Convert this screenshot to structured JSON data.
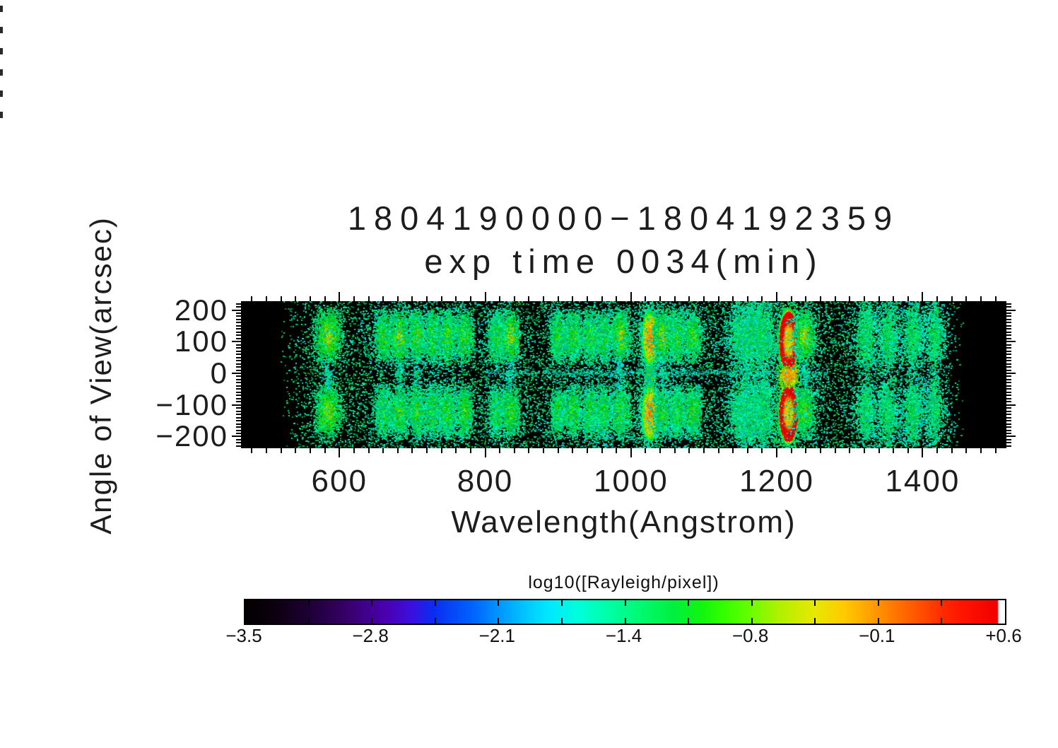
{
  "title": {
    "line1": "1804190000−1804192359",
    "line2": "exp time 0034(min)"
  },
  "chart_data": {
    "type": "heatmap",
    "title": "1804190000−1804192359",
    "subtitle": "exp time 0034(min)",
    "xlabel": "Wavelength(Angstrom)",
    "ylabel": "Angle of View(arcsec)",
    "xlim": [
      465,
      1515
    ],
    "ylim": [
      -237,
      228
    ],
    "x_ticks": [
      600,
      800,
      1000,
      1200,
      1400
    ],
    "x_tick_labels": [
      "600",
      "800",
      "1000",
      "1200",
      "1400"
    ],
    "x_minor_step": 20,
    "y_ticks": [
      200,
      100,
      0,
      -100,
      -200
    ],
    "y_tick_labels": [
      "200",
      "100",
      "0",
      "−100",
      "−200"
    ],
    "y_minor_step": 10,
    "grid": false,
    "background": "#000000",
    "signal_range_angstrom": [
      530,
      1455
    ],
    "slit_gap_arcsec": [
      -30,
      30
    ],
    "noise_floor_log10R": [
      -2.2,
      -1.3
    ],
    "center_streak": {
      "y_arcsec": 0,
      "x_range_angstrom": [
        800,
        1270
      ],
      "log10R": -1.8
    },
    "emission_lines": [
      {
        "wl": 584,
        "width": 19,
        "top": 0.95,
        "bottom": 0.85,
        "style": "green",
        "peak_log10R": -0.6
      },
      {
        "wl": 660,
        "width": 12,
        "top": 0.55,
        "bottom": 0.5,
        "style": "green",
        "peak_log10R": -0.9
      },
      {
        "wl": 682,
        "width": 13,
        "top": 0.75,
        "bottom": 0.6,
        "style": "ycore",
        "peak_log10R": -0.6
      },
      {
        "wl": 706,
        "width": 12,
        "top": 0.65,
        "bottom": 0.6,
        "style": "green",
        "peak_log10R": -0.8
      },
      {
        "wl": 728,
        "width": 11,
        "top": 0.55,
        "bottom": 0.55,
        "style": "green",
        "peak_log10R": -0.9
      },
      {
        "wl": 748,
        "width": 12,
        "top": 0.6,
        "bottom": 0.55,
        "style": "green",
        "peak_log10R": -0.9
      },
      {
        "wl": 771,
        "width": 12,
        "top": 0.6,
        "bottom": 0.6,
        "style": "green",
        "peak_log10R": -0.9
      },
      {
        "wl": 815,
        "width": 11,
        "top": 0.5,
        "bottom": 0.45,
        "style": "green",
        "peak_log10R": -1.0
      },
      {
        "wl": 834,
        "width": 13,
        "top": 0.7,
        "bottom": 0.6,
        "style": "ycore",
        "peak_log10R": -0.6
      },
      {
        "wl": 900,
        "width": 11,
        "top": 0.5,
        "bottom": 0.45,
        "style": "green",
        "peak_log10R": -1.0
      },
      {
        "wl": 920,
        "width": 12,
        "top": 0.55,
        "bottom": 0.5,
        "style": "green",
        "peak_log10R": -0.9
      },
      {
        "wl": 944,
        "width": 11,
        "top": 0.55,
        "bottom": 0.5,
        "style": "green",
        "peak_log10R": -0.9
      },
      {
        "wl": 962,
        "width": 10,
        "top": 0.5,
        "bottom": 0.45,
        "style": "green",
        "peak_log10R": -1.0
      },
      {
        "wl": 985,
        "width": 13,
        "top": 0.75,
        "bottom": 0.6,
        "style": "ycore",
        "peak_log10R": -0.6
      },
      {
        "wl": 1026,
        "width": 26,
        "top": 1.0,
        "bottom": 1.0,
        "style": "yellow",
        "peak_log10R": -0.1
      },
      {
        "wl": 1043,
        "width": 13,
        "top": 0.75,
        "bottom": 0.55,
        "style": "ycore",
        "peak_log10R": -0.6
      },
      {
        "wl": 1063,
        "width": 11,
        "top": 0.55,
        "bottom": 0.5,
        "style": "green",
        "peak_log10R": -0.9
      },
      {
        "wl": 1084,
        "width": 12,
        "top": 0.6,
        "bottom": 0.55,
        "style": "green",
        "peak_log10R": -0.9
      },
      {
        "wl": 1150,
        "width": 15,
        "top": 0.5,
        "bottom": 0.45,
        "style": "diffuse",
        "peak_log10R": -1.1
      },
      {
        "wl": 1166,
        "width": 14,
        "top": 0.55,
        "bottom": 0.5,
        "style": "diffuse",
        "peak_log10R": -1.1
      },
      {
        "wl": 1181,
        "width": 12,
        "top": 0.5,
        "bottom": 0.45,
        "style": "diffuse",
        "peak_log10R": -1.1
      },
      {
        "wl": 1216,
        "width": 28,
        "top": 1.0,
        "bottom": 1.0,
        "style": "lya",
        "peak_log10R": 0.6
      },
      {
        "wl": 1238,
        "width": 14,
        "top": 0.8,
        "bottom": 0.65,
        "style": "ycore",
        "peak_log10R": -0.5
      },
      {
        "wl": 1322,
        "width": 13,
        "top": 0.4,
        "bottom": 0.35,
        "style": "diffuse",
        "peak_log10R": -1.2
      },
      {
        "wl": 1352,
        "width": 12,
        "top": 0.4,
        "bottom": 0.35,
        "style": "diffuse",
        "peak_log10R": -1.2
      },
      {
        "wl": 1387,
        "width": 12,
        "top": 0.35,
        "bottom": 0.35,
        "style": "diffuse",
        "peak_log10R": -1.3
      },
      {
        "wl": 1416,
        "width": 10,
        "top": 0.3,
        "bottom": 0.25,
        "style": "diffuse",
        "peak_log10R": -1.3
      }
    ],
    "colorbar": {
      "label": "log10([Rayleigh/pixel])",
      "min": -3.5,
      "max": 0.6,
      "tick_labels": [
        "−3.5",
        "−2.8",
        "−2.1",
        "−1.4",
        "−0.8",
        "−0.1",
        "+0.6"
      ],
      "gradient": [
        {
          "pos": 0.0,
          "color": "#000000"
        },
        {
          "pos": 0.04,
          "color": "#0d0010"
        },
        {
          "pos": 0.09,
          "color": "#20003a"
        },
        {
          "pos": 0.14,
          "color": "#3a0070"
        },
        {
          "pos": 0.185,
          "color": "#4a00b0"
        },
        {
          "pos": 0.22,
          "color": "#3a10e0"
        },
        {
          "pos": 0.247,
          "color": "#0b2cf0"
        },
        {
          "pos": 0.3,
          "color": "#0064ff"
        },
        {
          "pos": 0.33,
          "color": "#0090ff"
        },
        {
          "pos": 0.37,
          "color": "#00c8ff"
        },
        {
          "pos": 0.4,
          "color": "#00e8ff"
        },
        {
          "pos": 0.44,
          "color": "#00ffd8"
        },
        {
          "pos": 0.47,
          "color": "#00ffb0"
        },
        {
          "pos": 0.52,
          "color": "#00fa70"
        },
        {
          "pos": 0.563,
          "color": "#00f040"
        },
        {
          "pos": 0.6,
          "color": "#10f510"
        },
        {
          "pos": 0.628,
          "color": "#30ff00"
        },
        {
          "pos": 0.66,
          "color": "#60ff00"
        },
        {
          "pos": 0.702,
          "color": "#b0f000"
        },
        {
          "pos": 0.75,
          "color": "#e8e800"
        },
        {
          "pos": 0.79,
          "color": "#ffc800"
        },
        {
          "pos": 0.823,
          "color": "#ffa000"
        },
        {
          "pos": 0.86,
          "color": "#ff7000"
        },
        {
          "pos": 0.888,
          "color": "#ff5000"
        },
        {
          "pos": 0.92,
          "color": "#ff2800"
        },
        {
          "pos": 0.944,
          "color": "#ff1400"
        },
        {
          "pos": 0.99,
          "color": "#f00000"
        },
        {
          "pos": 0.992,
          "color": "#ffffff"
        },
        {
          "pos": 1.0,
          "color": "#ffffff"
        }
      ]
    }
  }
}
